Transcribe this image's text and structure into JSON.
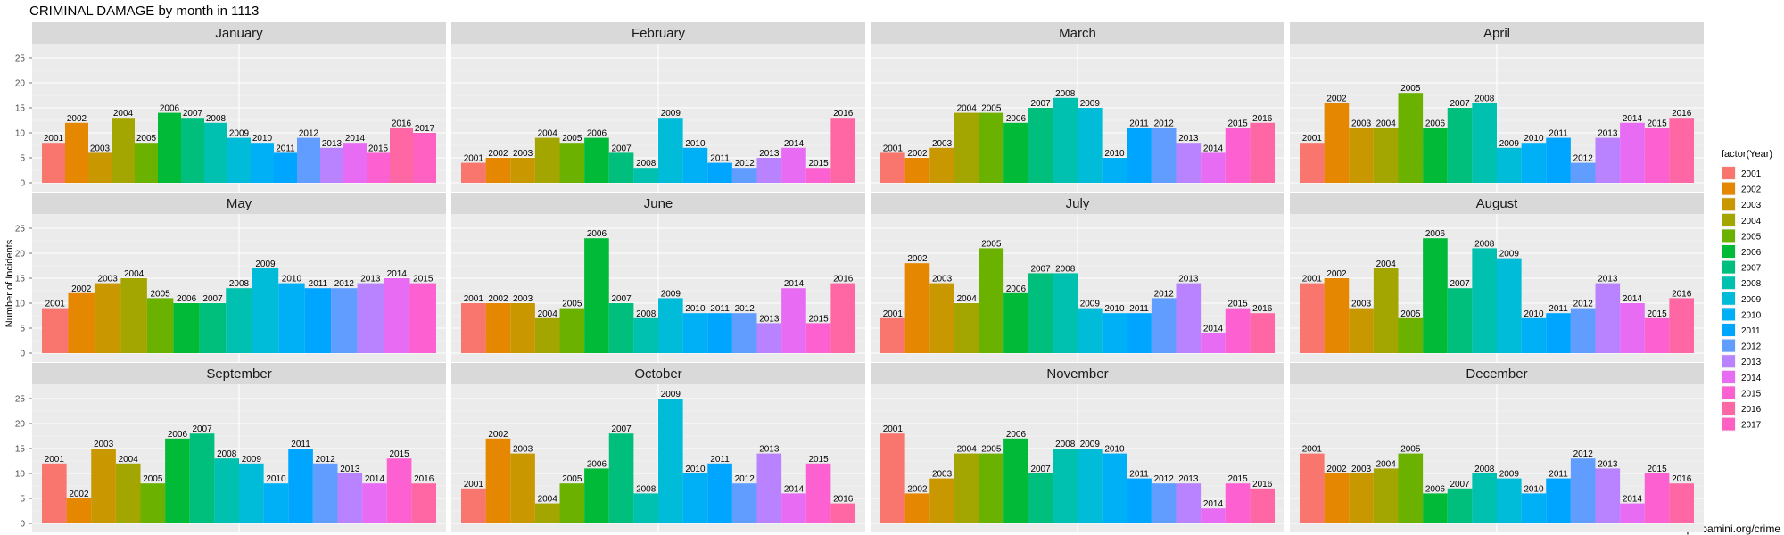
{
  "chart_data": {
    "type": "bar",
    "title": "CRIMINAL DAMAGE by month in 1113",
    "ylabel": "Number of Incidents",
    "xlabel": "",
    "ylim": [
      0,
      25
    ],
    "yticks": [
      0,
      5,
      10,
      15,
      20,
      25
    ],
    "legend_title": "factor(Year)",
    "legend_position": "right",
    "caption": "http://bamini.org/crime",
    "years": [
      "2001",
      "2002",
      "2003",
      "2004",
      "2005",
      "2006",
      "2007",
      "2008",
      "2009",
      "2010",
      "2011",
      "2012",
      "2013",
      "2014",
      "2015",
      "2016",
      "2017"
    ],
    "colors": [
      "#F8766D",
      "#E58700",
      "#C99800",
      "#A3A500",
      "#6BB100",
      "#00BA38",
      "#00BF7D",
      "#00C0AF",
      "#00BCD8",
      "#00B0F6",
      "#00A5FF",
      "#619CFF",
      "#B983FF",
      "#E76BF3",
      "#FD61D1",
      "#FF67A4",
      "#FF61C3"
    ],
    "panels": [
      {
        "month": "January",
        "values": [
          8,
          12,
          6,
          13,
          8,
          14,
          13,
          12,
          9,
          8,
          6,
          9,
          7,
          8,
          6,
          11,
          10
        ]
      },
      {
        "month": "February",
        "values": [
          4,
          5,
          5,
          9,
          8,
          9,
          6,
          3,
          13,
          7,
          4,
          3,
          5,
          7,
          3,
          13
        ]
      },
      {
        "month": "March",
        "values": [
          6,
          5,
          7,
          14,
          14,
          12,
          15,
          17,
          15,
          5,
          11,
          11,
          8,
          6,
          11,
          12
        ]
      },
      {
        "month": "April",
        "values": [
          8,
          16,
          11,
          11,
          18,
          11,
          15,
          16,
          7,
          8,
          9,
          4,
          9,
          12,
          11,
          13
        ]
      },
      {
        "month": "May",
        "values": [
          9,
          12,
          14,
          15,
          11,
          10,
          10,
          13,
          17,
          14,
          13,
          13,
          14,
          15,
          14
        ]
      },
      {
        "month": "June",
        "values": [
          10,
          10,
          10,
          7,
          9,
          23,
          10,
          7,
          11,
          8,
          8,
          8,
          6,
          13,
          6,
          14
        ]
      },
      {
        "month": "July",
        "values": [
          7,
          18,
          14,
          10,
          21,
          12,
          16,
          16,
          9,
          8,
          8,
          11,
          14,
          4,
          9,
          8
        ]
      },
      {
        "month": "August",
        "values": [
          14,
          15,
          9,
          17,
          7,
          23,
          13,
          21,
          19,
          7,
          8,
          9,
          14,
          10,
          7,
          11
        ]
      },
      {
        "month": "September",
        "values": [
          12,
          5,
          15,
          12,
          8,
          17,
          18,
          13,
          12,
          8,
          15,
          12,
          10,
          8,
          13,
          8
        ]
      },
      {
        "month": "October",
        "values": [
          7,
          17,
          14,
          4,
          8,
          11,
          18,
          6,
          25,
          10,
          12,
          8,
          14,
          6,
          12,
          4
        ]
      },
      {
        "month": "November",
        "values": [
          18,
          6,
          9,
          14,
          14,
          17,
          10,
          15,
          15,
          14,
          9,
          8,
          8,
          3,
          8,
          7
        ]
      },
      {
        "month": "December",
        "values": [
          14,
          10,
          10,
          11,
          14,
          6,
          7,
          10,
          9,
          6,
          9,
          13,
          11,
          4,
          10,
          8
        ]
      }
    ]
  }
}
